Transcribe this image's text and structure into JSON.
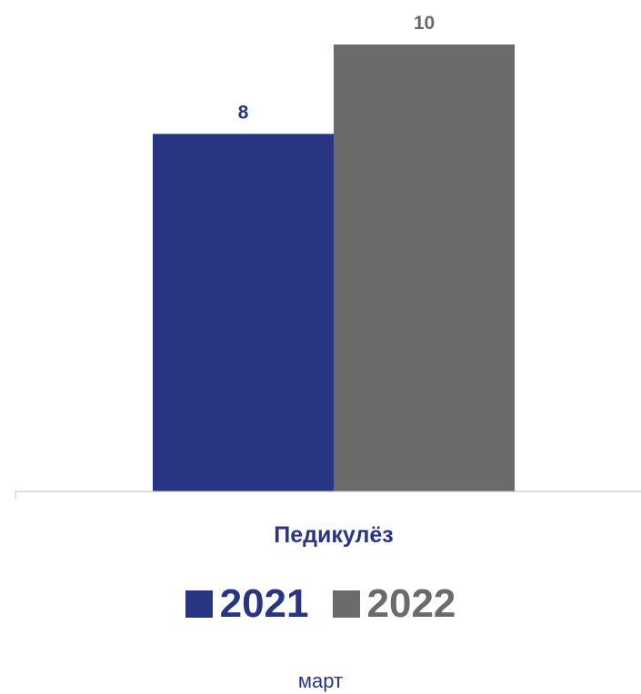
{
  "chart_data": {
    "type": "bar",
    "categories": [
      "Педикулёз"
    ],
    "series": [
      {
        "name": "2021",
        "values": [
          8
        ],
        "color": "#283583"
      },
      {
        "name": "2022",
        "values": [
          10
        ],
        "color": "#6b6b6b"
      }
    ],
    "ylim": [
      0,
      10
    ],
    "grid": false,
    "legend_position": "bottom",
    "category_label_color": "#283583"
  },
  "footer": {
    "period": "март"
  }
}
